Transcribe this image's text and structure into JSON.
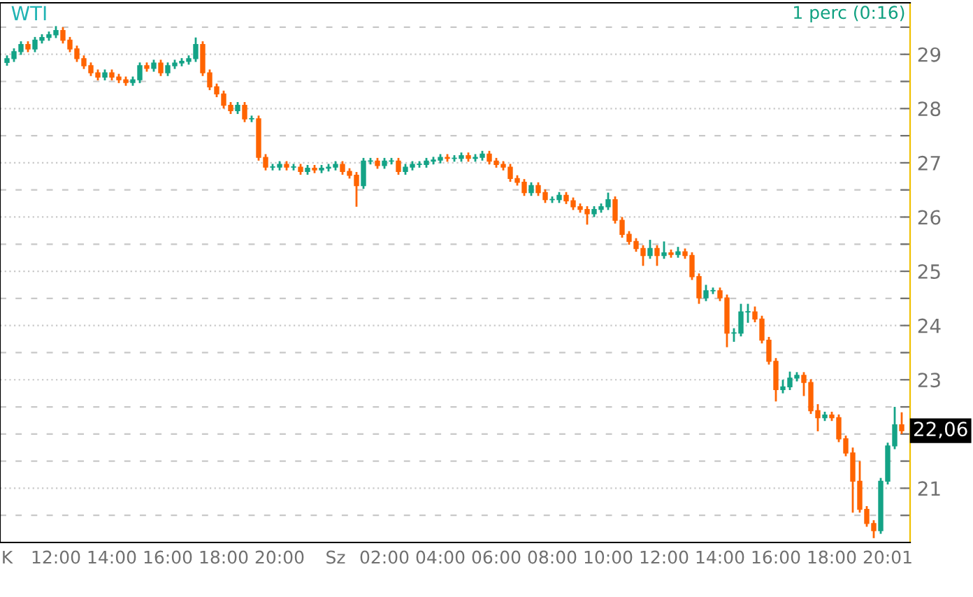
{
  "chart_data": {
    "type": "candlestick",
    "title": "WTI",
    "annotations": [
      "1 perc (0:16)",
      {
        "text": "22,06",
        "y": 22.06
      }
    ],
    "categories": [
      "K",
      null,
      null,
      null,
      null,
      null,
      null,
      "12:00",
      null,
      null,
      null,
      null,
      null,
      null,
      null,
      "14:00",
      null,
      null,
      null,
      null,
      null,
      null,
      null,
      "16:00",
      null,
      null,
      null,
      null,
      null,
      null,
      null,
      "18:00",
      null,
      null,
      null,
      null,
      null,
      null,
      null,
      "20:00",
      null,
      null,
      null,
      null,
      null,
      null,
      null,
      "Sz",
      null,
      null,
      null,
      null,
      null,
      null,
      "02:00",
      null,
      null,
      null,
      null,
      null,
      null,
      null,
      "04:00",
      null,
      null,
      null,
      null,
      null,
      null,
      null,
      "06:00",
      null,
      null,
      null,
      null,
      null,
      null,
      null,
      "08:00",
      null,
      null,
      null,
      null,
      null,
      null,
      null,
      "10:00",
      null,
      null,
      null,
      null,
      null,
      null,
      null,
      "12:00",
      null,
      null,
      null,
      null,
      null,
      null,
      null,
      "14:00",
      null,
      null,
      null,
      null,
      null,
      null,
      null,
      "16:00",
      null,
      null,
      null,
      null,
      null,
      null,
      null,
      "18:00",
      null,
      null,
      null,
      null,
      null,
      null,
      null,
      "20:01",
      null,
      null
    ],
    "ohlc": [
      [
        28.85,
        28.98,
        28.79,
        28.92
      ],
      [
        28.92,
        29.11,
        28.86,
        29.05
      ],
      [
        29.05,
        29.24,
        28.99,
        29.18
      ],
      [
        29.18,
        29.24,
        29.04,
        29.1
      ],
      [
        29.1,
        29.32,
        29.04,
        29.26
      ],
      [
        29.26,
        29.37,
        29.2,
        29.31
      ],
      [
        29.31,
        29.42,
        29.25,
        29.36
      ],
      [
        29.36,
        29.52,
        29.3,
        29.44
      ],
      [
        29.44,
        29.5,
        29.2,
        29.26
      ],
      [
        29.26,
        29.32,
        29.04,
        29.1
      ],
      [
        29.1,
        29.16,
        28.86,
        28.92
      ],
      [
        28.92,
        28.98,
        28.73,
        28.79
      ],
      [
        28.79,
        28.85,
        28.6,
        28.66
      ],
      [
        28.66,
        28.72,
        28.52,
        28.58
      ],
      [
        28.58,
        28.72,
        28.52,
        28.66
      ],
      [
        28.66,
        28.72,
        28.52,
        28.58
      ],
      [
        28.58,
        28.64,
        28.47,
        28.53
      ],
      [
        28.53,
        28.59,
        28.42,
        28.48
      ],
      [
        28.48,
        28.59,
        28.42,
        28.53
      ],
      [
        28.53,
        28.85,
        28.47,
        28.79
      ],
      [
        28.79,
        28.85,
        28.68,
        28.74
      ],
      [
        28.74,
        28.9,
        28.68,
        28.84
      ],
      [
        28.84,
        28.9,
        28.6,
        28.66
      ],
      [
        28.66,
        28.85,
        28.6,
        28.79
      ],
      [
        28.79,
        28.9,
        28.73,
        28.84
      ],
      [
        28.84,
        28.93,
        28.78,
        28.87
      ],
      [
        28.87,
        28.98,
        28.81,
        28.92
      ],
      [
        28.92,
        29.31,
        28.86,
        29.18
      ],
      [
        29.18,
        29.24,
        28.6,
        28.66
      ],
      [
        28.66,
        28.72,
        28.34,
        28.4
      ],
      [
        28.4,
        28.46,
        28.21,
        28.27
      ],
      [
        28.27,
        28.33,
        28.0,
        28.06
      ],
      [
        28.06,
        28.12,
        27.9,
        27.96
      ],
      [
        27.96,
        28.12,
        27.9,
        28.06
      ],
      [
        28.06,
        28.12,
        27.75,
        27.81
      ],
      [
        27.81,
        27.87,
        27.75,
        27.81
      ],
      [
        27.81,
        27.87,
        27.04,
        27.1
      ],
      [
        27.1,
        27.16,
        26.86,
        26.92
      ],
      [
        26.92,
        26.98,
        26.86,
        26.92
      ],
      [
        26.92,
        27.03,
        26.86,
        26.97
      ],
      [
        26.97,
        27.03,
        26.86,
        26.92
      ],
      [
        26.92,
        26.98,
        26.86,
        26.92
      ],
      [
        26.92,
        26.98,
        26.78,
        26.84
      ],
      [
        26.84,
        26.96,
        26.78,
        26.9
      ],
      [
        26.9,
        26.96,
        26.81,
        26.87
      ],
      [
        26.87,
        26.96,
        26.81,
        26.9
      ],
      [
        26.9,
        26.98,
        26.84,
        26.92
      ],
      [
        26.92,
        27.03,
        26.86,
        26.97
      ],
      [
        26.97,
        27.03,
        26.78,
        26.84
      ],
      [
        26.84,
        26.9,
        26.71,
        26.77
      ],
      [
        26.77,
        26.83,
        26.19,
        26.58
      ],
      [
        26.58,
        27.09,
        26.52,
        27.03
      ],
      [
        27.03,
        27.09,
        26.97,
        27.03
      ],
      [
        27.03,
        27.09,
        26.89,
        26.95
      ],
      [
        26.95,
        27.09,
        26.89,
        27.03
      ],
      [
        27.03,
        27.09,
        26.97,
        27.03
      ],
      [
        27.03,
        27.09,
        26.78,
        26.84
      ],
      [
        26.84,
        26.98,
        26.78,
        26.92
      ],
      [
        26.92,
        27.03,
        26.86,
        26.97
      ],
      [
        26.97,
        27.03,
        26.91,
        26.97
      ],
      [
        26.97,
        27.09,
        26.91,
        27.03
      ],
      [
        27.03,
        27.11,
        26.97,
        27.05
      ],
      [
        27.05,
        27.16,
        26.99,
        27.1
      ],
      [
        27.1,
        27.16,
        27.02,
        27.08
      ],
      [
        27.08,
        27.14,
        27.02,
        27.08
      ],
      [
        27.08,
        27.19,
        27.02,
        27.13
      ],
      [
        27.13,
        27.19,
        27.02,
        27.08
      ],
      [
        27.08,
        27.16,
        27.02,
        27.1
      ],
      [
        27.1,
        27.22,
        27.04,
        27.16
      ],
      [
        27.16,
        27.22,
        26.97,
        27.03
      ],
      [
        27.03,
        27.09,
        26.91,
        26.97
      ],
      [
        26.97,
        27.03,
        26.86,
        26.92
      ],
      [
        26.92,
        26.98,
        26.65,
        26.71
      ],
      [
        26.71,
        26.77,
        26.58,
        26.64
      ],
      [
        26.64,
        26.7,
        26.39,
        26.45
      ],
      [
        26.45,
        26.64,
        26.39,
        26.58
      ],
      [
        26.58,
        26.64,
        26.39,
        26.45
      ],
      [
        26.45,
        26.51,
        26.26,
        26.32
      ],
      [
        26.32,
        26.38,
        26.26,
        26.32
      ],
      [
        26.32,
        26.46,
        26.26,
        26.4
      ],
      [
        26.4,
        26.46,
        26.24,
        26.3
      ],
      [
        26.3,
        26.36,
        26.13,
        26.19
      ],
      [
        26.19,
        26.25,
        26.08,
        26.14
      ],
      [
        26.14,
        26.2,
        25.86,
        26.06
      ],
      [
        26.06,
        26.2,
        26.0,
        26.14
      ],
      [
        26.14,
        26.25,
        26.08,
        26.19
      ],
      [
        26.19,
        26.45,
        26.13,
        26.32
      ],
      [
        26.32,
        26.38,
        25.88,
        25.94
      ],
      [
        25.94,
        26.0,
        25.62,
        25.68
      ],
      [
        25.68,
        25.74,
        25.49,
        25.55
      ],
      [
        25.55,
        25.61,
        25.36,
        25.42
      ],
      [
        25.42,
        25.48,
        25.1,
        25.29
      ],
      [
        25.29,
        25.58,
        25.23,
        25.42
      ],
      [
        25.42,
        25.48,
        25.1,
        25.29
      ],
      [
        25.29,
        25.55,
        25.23,
        25.34
      ],
      [
        25.34,
        25.4,
        25.25,
        25.31
      ],
      [
        25.31,
        25.45,
        25.25,
        25.36
      ],
      [
        25.36,
        25.42,
        25.23,
        25.29
      ],
      [
        25.29,
        25.35,
        24.84,
        24.9
      ],
      [
        24.9,
        24.96,
        24.4,
        24.51
      ],
      [
        24.51,
        24.75,
        24.45,
        24.64
      ],
      [
        24.64,
        24.7,
        24.58,
        24.64
      ],
      [
        24.64,
        24.7,
        24.45,
        24.51
      ],
      [
        24.51,
        24.57,
        23.6,
        23.86
      ],
      [
        23.86,
        23.95,
        23.7,
        23.86
      ],
      [
        23.86,
        24.4,
        23.8,
        24.25
      ],
      [
        24.25,
        24.4,
        24.05,
        24.25
      ],
      [
        24.25,
        24.35,
        24.06,
        24.12
      ],
      [
        24.12,
        24.18,
        23.67,
        23.73
      ],
      [
        23.73,
        23.79,
        23.28,
        23.34
      ],
      [
        23.34,
        23.4,
        22.6,
        22.82
      ],
      [
        22.82,
        23.0,
        22.75,
        22.87
      ],
      [
        22.87,
        23.15,
        22.81,
        23.03
      ],
      [
        23.03,
        23.14,
        22.97,
        23.08
      ],
      [
        23.08,
        23.14,
        22.7,
        22.95
      ],
      [
        22.95,
        23.01,
        22.37,
        22.43
      ],
      [
        22.43,
        22.55,
        22.05,
        22.3
      ],
      [
        22.3,
        22.41,
        22.24,
        22.35
      ],
      [
        22.35,
        22.41,
        22.24,
        22.3
      ],
      [
        22.3,
        22.36,
        21.85,
        21.91
      ],
      [
        21.91,
        21.97,
        21.59,
        21.65
      ],
      [
        21.65,
        21.75,
        20.55,
        21.13
      ],
      [
        21.13,
        21.5,
        20.55,
        20.61
      ],
      [
        20.61,
        20.67,
        20.29,
        20.35
      ],
      [
        20.35,
        20.41,
        20.08,
        20.22
      ],
      [
        20.22,
        21.19,
        20.16,
        21.13
      ],
      [
        21.13,
        21.84,
        21.07,
        21.78
      ],
      [
        21.78,
        22.5,
        21.72,
        22.17
      ],
      [
        22.17,
        22.4,
        22.0,
        22.06
      ]
    ],
    "colors": [
      "#14a386",
      "#14a386",
      "#14a386",
      "#ff6400",
      "#14a386",
      "#14a386",
      "#14a386",
      "#14a386",
      "#ff6400",
      "#ff6400",
      "#ff6400",
      "#ff6400",
      "#ff6400",
      "#ff6400",
      "#14a386",
      "#ff6400",
      "#ff6400",
      "#ff6400",
      "#14a386",
      "#14a386",
      "#ff6400",
      "#14a386",
      "#ff6400",
      "#14a386",
      "#14a386",
      "#14a386",
      "#14a386",
      "#14a386",
      "#ff6400",
      "#ff6400",
      "#ff6400",
      "#ff6400",
      "#ff6400",
      "#14a386",
      "#ff6400",
      "#14a386",
      "#ff6400",
      "#ff6400",
      "#14a386",
      "#14a386",
      "#ff6400",
      "#14a386",
      "#ff6400",
      "#14a386",
      "#ff6400",
      "#14a386",
      "#14a386",
      "#14a386",
      "#ff6400",
      "#ff6400",
      "#ff6400",
      "#14a386",
      "#14a386",
      "#ff6400",
      "#14a386",
      "#14a386",
      "#ff6400",
      "#14a386",
      "#14a386",
      "#14a386",
      "#14a386",
      "#14a386",
      "#14a386",
      "#ff6400",
      "#14a386",
      "#14a386",
      "#ff6400",
      "#14a386",
      "#14a386",
      "#ff6400",
      "#ff6400",
      "#ff6400",
      "#ff6400",
      "#ff6400",
      "#ff6400",
      "#14a386",
      "#ff6400",
      "#ff6400",
      "#14a386",
      "#14a386",
      "#ff6400",
      "#ff6400",
      "#ff6400",
      "#ff6400",
      "#14a386",
      "#14a386",
      "#14a386",
      "#ff6400",
      "#ff6400",
      "#ff6400",
      "#ff6400",
      "#ff6400",
      "#14a386",
      "#ff6400",
      "#14a386",
      "#ff6400",
      "#14a386",
      "#ff6400",
      "#ff6400",
      "#ff6400",
      "#14a386",
      "#14a386",
      "#ff6400",
      "#ff6400",
      "#14a386",
      "#14a386",
      "#14a386",
      "#ff6400",
      "#ff6400",
      "#ff6400",
      "#ff6400",
      "#14a386",
      "#14a386",
      "#14a386",
      "#ff6400",
      "#ff6400",
      "#ff6400",
      "#14a386",
      "#ff6400",
      "#ff6400",
      "#ff6400",
      "#ff6400",
      "#ff6400",
      "#ff6400",
      "#ff6400",
      "#14a386",
      "#14a386",
      "#14a386",
      "#ff6400"
    ],
    "ylim": [
      20.0,
      29.95
    ],
    "yticks": [
      {
        "value": 20.5,
        "label": null
      },
      21,
      {
        "value": 21.5,
        "label": null
      },
      {
        "value": 22,
        "label": null
      },
      {
        "value": 22.5,
        "label": null
      },
      23,
      {
        "value": 23.5,
        "label": null
      },
      24,
      {
        "value": 24.5,
        "label": null
      },
      25,
      {
        "value": 25.5,
        "label": null
      },
      26,
      {
        "value": 26.5,
        "label": null
      },
      27,
      {
        "value": 27.5,
        "label": null
      },
      28,
      {
        "value": 28.5,
        "label": null
      },
      29,
      {
        "value": 29.5,
        "label": null
      }
    ],
    "grid": "y"
  }
}
